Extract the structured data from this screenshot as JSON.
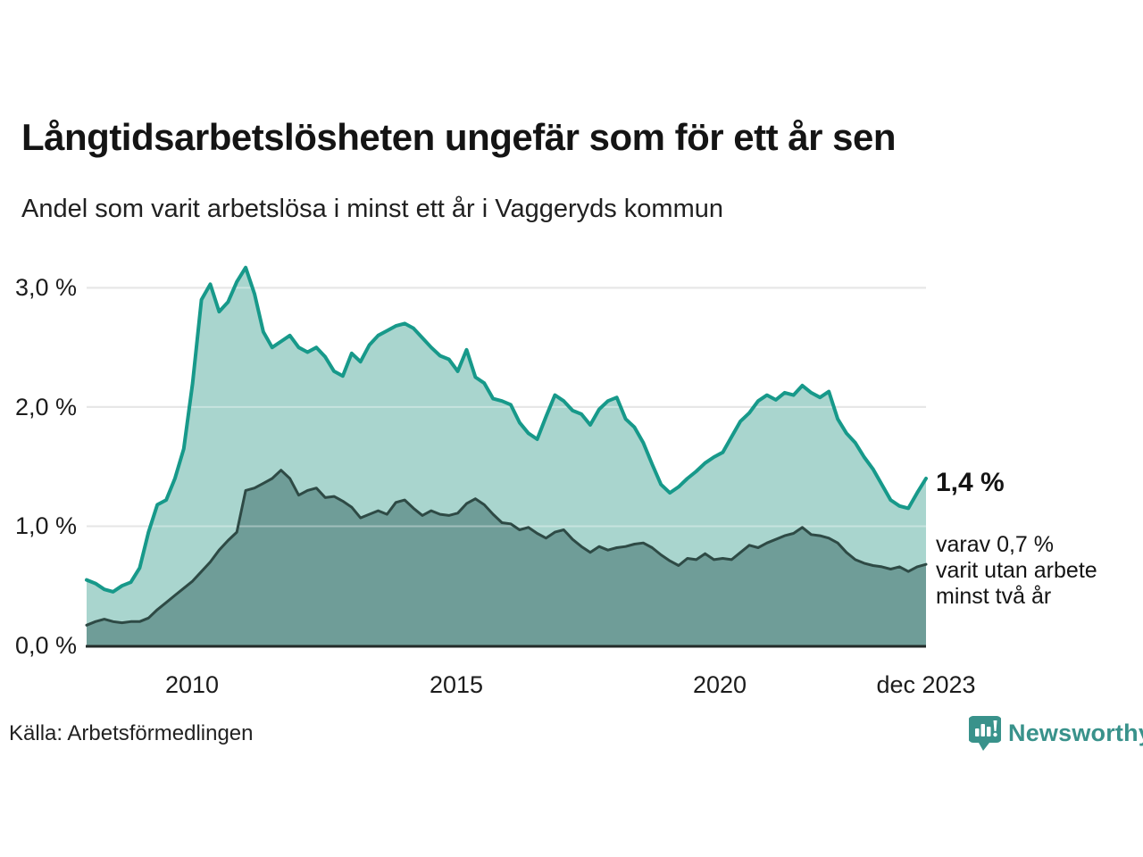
{
  "header": {
    "title": "Långtidsarbetslösheten ungefär som för ett år sen",
    "subtitle": "Andel som varit arbetslösa i minst ett år i Vaggeryds kommun"
  },
  "chart_data": {
    "type": "area",
    "title": "Långtidsarbetslösheten ungefär som för ett år sen",
    "subtitle": "Andel som varit arbetslösa i minst ett år i Vaggeryds kommun",
    "unit": "%",
    "x_start_year": 2008.0,
    "x_end_year": 2023.917,
    "x_step_months": 2,
    "ylim": [
      0,
      3.25
    ],
    "grid": "horizontal",
    "legend_position": "none",
    "yticks": [
      {
        "value": 0,
        "label": "0,0 %"
      },
      {
        "value": 1,
        "label": "1,0 %"
      },
      {
        "value": 2,
        "label": "2,0 %"
      },
      {
        "value": 3,
        "label": "3,0 %"
      }
    ],
    "xticks": [
      {
        "year": 2010,
        "label": "2010"
      },
      {
        "year": 2015,
        "label": "2015"
      },
      {
        "year": 2020,
        "label": "2020"
      },
      {
        "year": 2023.917,
        "label": "dec 2023"
      }
    ],
    "series": [
      {
        "name": "Arbetslösa minst ett år",
        "fill": "#a9d5ce",
        "stroke": "#17998a",
        "stroke_width": 4,
        "last_value": 1.4,
        "values": [
          0.55,
          0.52,
          0.47,
          0.45,
          0.5,
          0.53,
          0.65,
          0.95,
          1.18,
          1.22,
          1.4,
          1.65,
          2.2,
          2.9,
          3.03,
          2.8,
          2.88,
          3.05,
          3.17,
          2.95,
          2.63,
          2.5,
          2.55,
          2.6,
          2.5,
          2.46,
          2.5,
          2.42,
          2.3,
          2.26,
          2.45,
          2.38,
          2.52,
          2.6,
          2.64,
          2.68,
          2.7,
          2.66,
          2.58,
          2.5,
          2.43,
          2.4,
          2.3,
          2.48,
          2.25,
          2.2,
          2.07,
          2.05,
          2.02,
          1.87,
          1.78,
          1.73,
          1.92,
          2.1,
          2.05,
          1.97,
          1.94,
          1.85,
          1.98,
          2.05,
          2.08,
          1.9,
          1.83,
          1.7,
          1.52,
          1.35,
          1.28,
          1.33,
          1.4,
          1.46,
          1.53,
          1.58,
          1.62,
          1.75,
          1.88,
          1.95,
          2.05,
          2.1,
          2.06,
          2.12,
          2.1,
          2.18,
          2.12,
          2.08,
          2.13,
          1.9,
          1.78,
          1.7,
          1.58,
          1.48,
          1.35,
          1.22,
          1.17,
          1.15,
          1.28,
          1.4
        ]
      },
      {
        "name": "Arbetslösa minst två år",
        "fill": "#6f9d98",
        "stroke": "#2e4a45",
        "stroke_width": 3,
        "last_value": 0.7,
        "values": [
          0.17,
          0.2,
          0.22,
          0.2,
          0.19,
          0.2,
          0.2,
          0.23,
          0.3,
          0.36,
          0.42,
          0.48,
          0.54,
          0.62,
          0.7,
          0.8,
          0.88,
          0.95,
          1.3,
          1.32,
          1.36,
          1.4,
          1.47,
          1.4,
          1.26,
          1.3,
          1.32,
          1.24,
          1.25,
          1.21,
          1.16,
          1.07,
          1.1,
          1.13,
          1.1,
          1.2,
          1.22,
          1.15,
          1.09,
          1.13,
          1.1,
          1.09,
          1.11,
          1.19,
          1.23,
          1.18,
          1.1,
          1.03,
          1.02,
          0.97,
          0.99,
          0.94,
          0.9,
          0.95,
          0.97,
          0.89,
          0.83,
          0.78,
          0.83,
          0.8,
          0.82,
          0.83,
          0.85,
          0.86,
          0.82,
          0.76,
          0.71,
          0.67,
          0.73,
          0.72,
          0.77,
          0.72,
          0.73,
          0.72,
          0.78,
          0.84,
          0.82,
          0.86,
          0.89,
          0.92,
          0.94,
          0.99,
          0.93,
          0.92,
          0.9,
          0.86,
          0.78,
          0.72,
          0.69,
          0.67,
          0.66,
          0.64,
          0.66,
          0.62,
          0.66,
          0.68
        ]
      }
    ],
    "annotations": {
      "value_label": "1,4 %",
      "subseries_lines": [
        "varav 0,7 %",
        "varit utan arbete",
        "minst två år"
      ]
    }
  },
  "footer": {
    "source": "Källa: Arbetsförmedlingen",
    "brand": "Newsworthy"
  },
  "colors": {
    "accent_teal": "#17998a",
    "area_light": "#a9d5ce",
    "area_dark": "#6f9d98",
    "line_dark": "#2e4a45",
    "grid": "#d9d9d9",
    "axis": "#232b29",
    "text": "#1a1a1a",
    "brand_teal": "#39928b"
  }
}
